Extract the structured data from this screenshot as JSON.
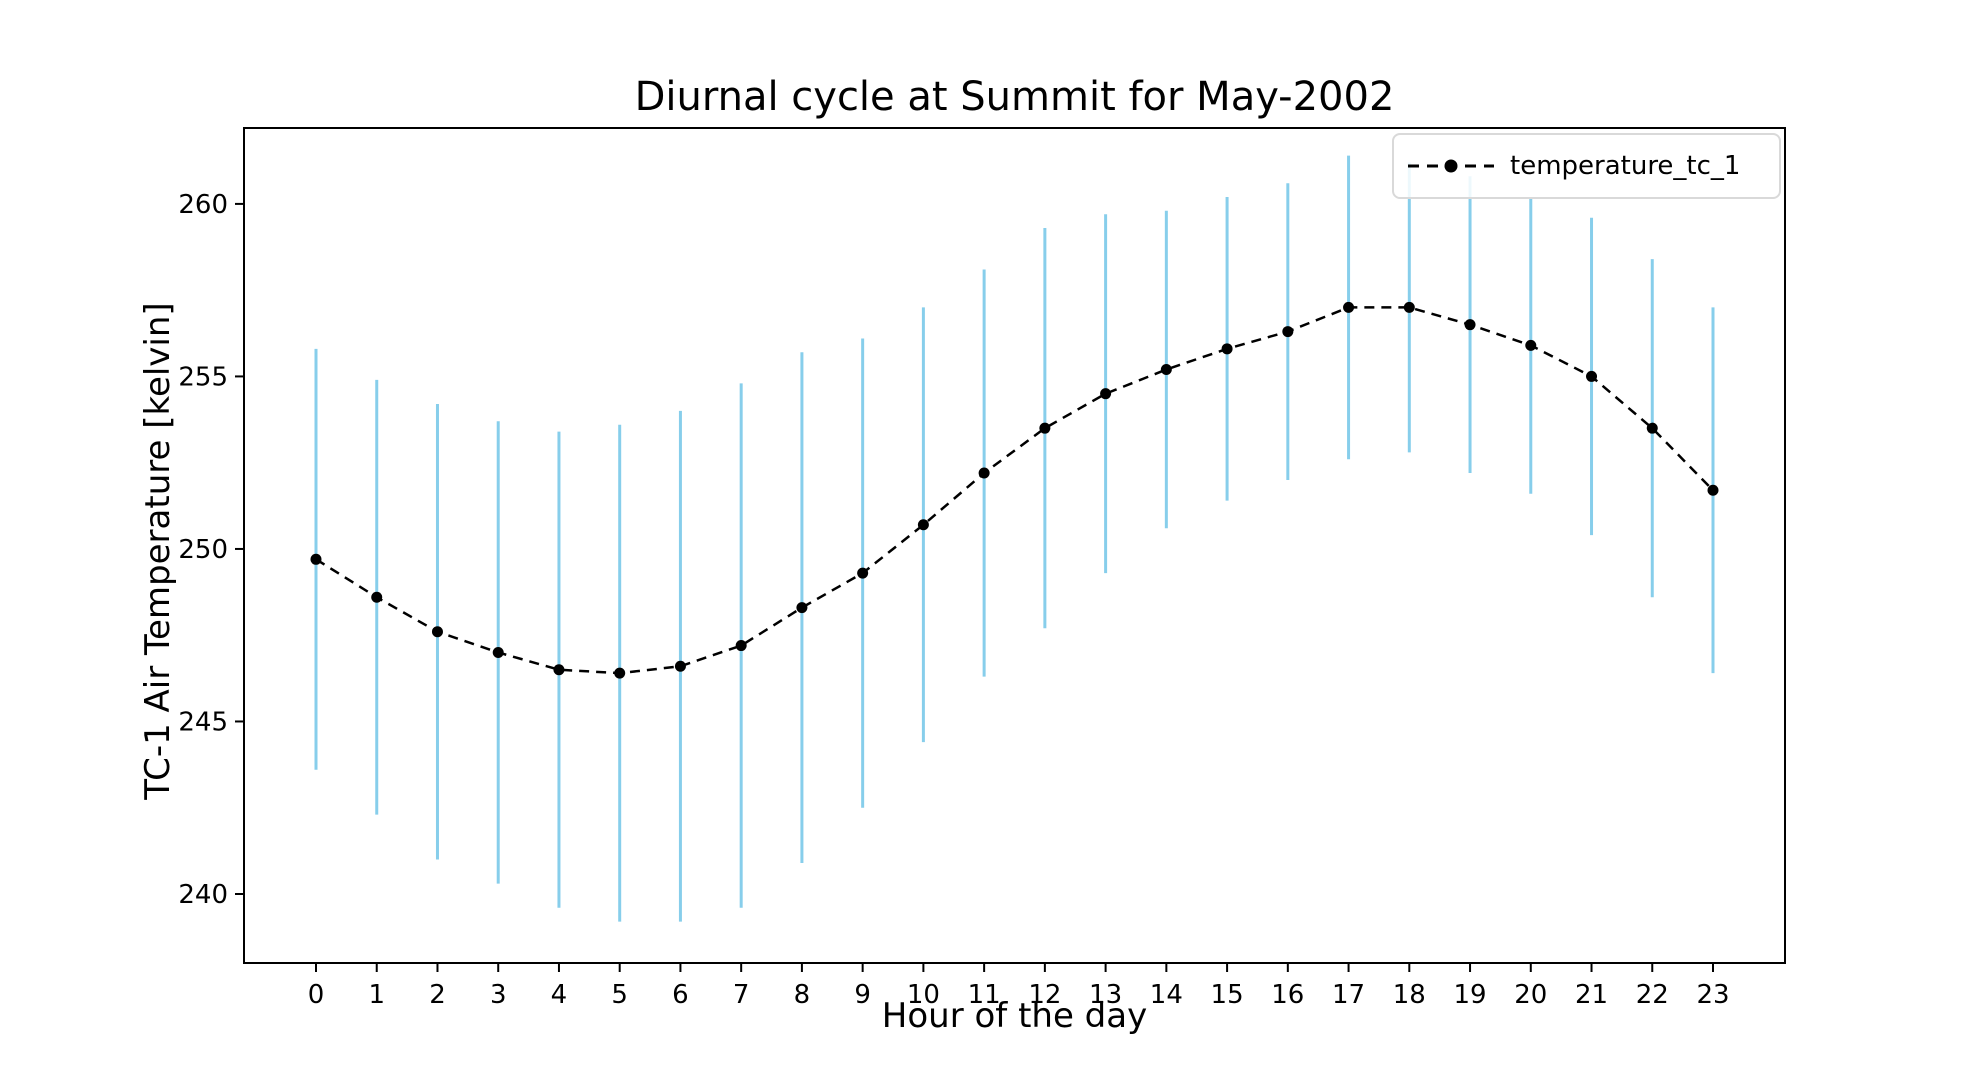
{
  "figure": {
    "title": "Diurnal cycle at Summit for May-2002",
    "x_axis_label": "Hour of the day",
    "y_axis_label": "TC-1 Air Temperature [kelvin]",
    "legend": {
      "label": "temperature_tc_1",
      "position": "upper right"
    }
  },
  "colors": {
    "background": "#ffffff",
    "error_bar": "#87CEEB",
    "line": "#000000",
    "marker": "#000000",
    "text": "#000000",
    "spine": "#000000",
    "legend_border": "#d9d9d9"
  },
  "chart_data": {
    "type": "line",
    "title": "Diurnal cycle at Summit for May-2002",
    "xlabel": "Hour of the day",
    "ylabel": "TC-1 Air Temperature [kelvin]",
    "grid": false,
    "legend_position": "upper right",
    "x": [
      0,
      1,
      2,
      3,
      4,
      5,
      6,
      7,
      8,
      9,
      10,
      11,
      12,
      13,
      14,
      15,
      16,
      17,
      18,
      19,
      20,
      21,
      22,
      23
    ],
    "xtick_labels": [
      "0",
      "1",
      "2",
      "3",
      "4",
      "5",
      "6",
      "7",
      "8",
      "9",
      "10",
      "11",
      "12",
      "13",
      "14",
      "15",
      "16",
      "17",
      "18",
      "19",
      "20",
      "21",
      "22",
      "23"
    ],
    "yticks": [
      240,
      245,
      250,
      255,
      260
    ],
    "ytick_labels": [
      "240",
      "245",
      "250",
      "255",
      "260"
    ],
    "ylim": [
      238.0,
      262.2
    ],
    "series": [
      {
        "name": "temperature_tc_1",
        "style": "dashed line, round black markers, sky-blue vertical error bars",
        "values": [
          249.7,
          248.6,
          247.6,
          247.0,
          246.5,
          246.4,
          246.6,
          247.2,
          248.3,
          249.3,
          250.7,
          252.2,
          253.5,
          254.5,
          255.2,
          255.8,
          256.3,
          257.0,
          257.0,
          256.5,
          255.9,
          255.0,
          253.5,
          251.7
        ],
        "yerr": [
          6.1,
          6.3,
          6.6,
          6.7,
          6.9,
          7.2,
          7.4,
          7.6,
          7.4,
          6.8,
          6.3,
          5.9,
          5.8,
          5.2,
          4.6,
          4.4,
          4.3,
          4.4,
          4.2,
          4.3,
          4.3,
          4.6,
          4.9,
          5.3
        ]
      }
    ]
  }
}
